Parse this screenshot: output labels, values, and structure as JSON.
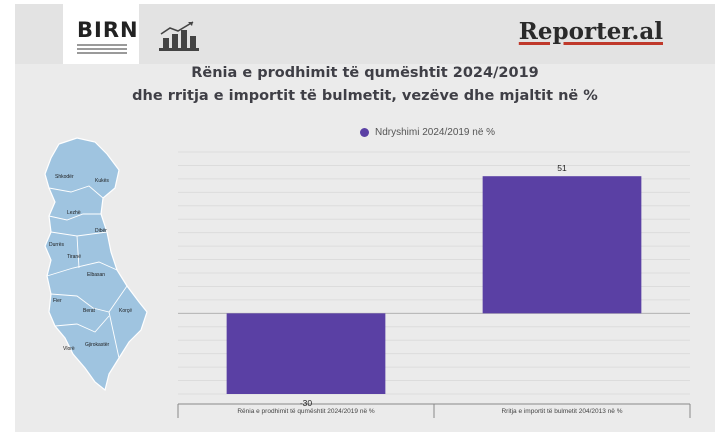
{
  "header": {
    "birn_logo": "BIRN",
    "reporter_logo": "Reporter.al"
  },
  "title": {
    "line1": "Rënia e prodhimit të qumështit 2024/2019",
    "line2": "dhe rritja e importit të bulmetit, vezëve dhe mjaltit në %"
  },
  "map": {
    "labels": [
      "Shkodër",
      "Kukës",
      "Lezhë",
      "Dibër",
      "Durrës",
      "Tiranë",
      "Elbasan",
      "Fier",
      "Berat",
      "Korçë",
      "Vlorë",
      "Gjirokastër"
    ]
  },
  "colors": {
    "bar": "#5a40a4",
    "accent": "#c0392b"
  },
  "chart_data": {
    "type": "bar",
    "categories": [
      "Rënia e prodhimit të qumështit 2024/2019 në %",
      "Rritja e importit të bulmetit 204/2013 në %"
    ],
    "series": [
      {
        "name": "Ndryshimi 2024/2019 në %",
        "values": [
          -30,
          51
        ]
      }
    ],
    "value_labels": [
      "-30",
      "51"
    ],
    "ylim": [
      -30,
      60
    ],
    "grid": true,
    "legend": "top"
  }
}
